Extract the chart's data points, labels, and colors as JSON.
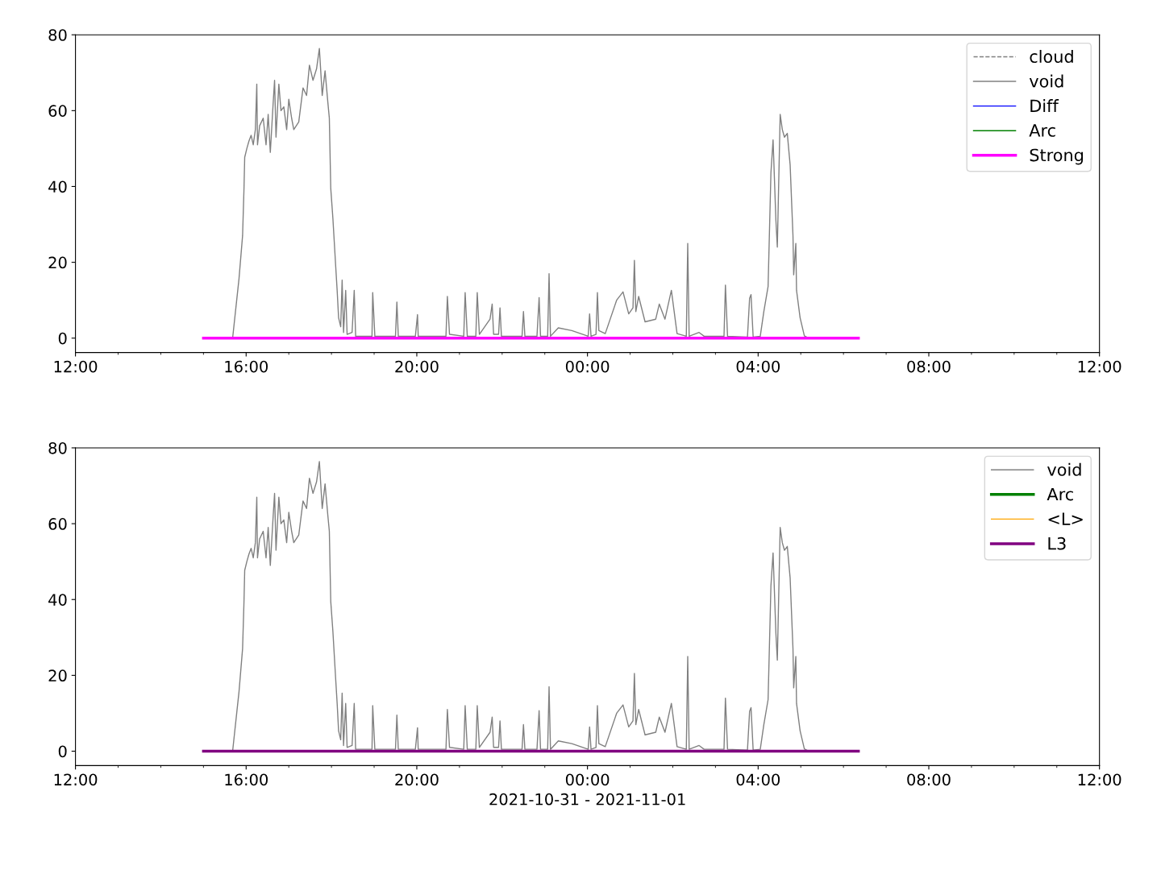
{
  "chart_data": [
    {
      "type": "line",
      "xlim": [
        "2021-10-31T12:00",
        "2021-11-01T12:00"
      ],
      "ylim": [
        -3.8,
        80
      ],
      "xticks": [
        {
          "value": "2021-10-31T12:00",
          "label": "12:00"
        },
        {
          "value": "2021-10-31T13:00",
          "label": null
        },
        {
          "value": "2021-10-31T14:00",
          "label": null
        },
        {
          "value": "2021-10-31T15:00",
          "label": null
        },
        {
          "value": "2021-10-31T16:00",
          "label": "16:00"
        },
        {
          "value": "2021-10-31T17:00",
          "label": null
        },
        {
          "value": "2021-10-31T18:00",
          "label": null
        },
        {
          "value": "2021-10-31T19:00",
          "label": null
        },
        {
          "value": "2021-10-31T20:00",
          "label": "20:00"
        },
        {
          "value": "2021-10-31T21:00",
          "label": null
        },
        {
          "value": "2021-10-31T22:00",
          "label": null
        },
        {
          "value": "2021-10-31T23:00",
          "label": null
        },
        {
          "value": "2021-11-01T00:00",
          "label": "00:00"
        },
        {
          "value": "2021-11-01T01:00",
          "label": null
        },
        {
          "value": "2021-11-01T02:00",
          "label": null
        },
        {
          "value": "2021-11-01T03:00",
          "label": null
        },
        {
          "value": "2021-11-01T04:00",
          "label": "04:00"
        },
        {
          "value": "2021-11-01T05:00",
          "label": null
        },
        {
          "value": "2021-11-01T06:00",
          "label": null
        },
        {
          "value": "2021-11-01T07:00",
          "label": null
        },
        {
          "value": "2021-11-01T08:00",
          "label": "08:00"
        },
        {
          "value": "2021-11-01T09:00",
          "label": null
        },
        {
          "value": "2021-11-01T10:00",
          "label": null
        },
        {
          "value": "2021-11-01T11:00",
          "label": null
        },
        {
          "value": "2021-11-01T12:00",
          "label": "12:00"
        }
      ],
      "yticks": [
        0,
        20,
        40,
        60,
        80
      ],
      "legend": "top right",
      "series": [
        {
          "name": "cloud",
          "color": "#808080",
          "line_style": "dashed"
        },
        {
          "name": "void",
          "color": "#808080",
          "x": [
            "2021-10-31T15:00",
            "2021-10-31T15:41",
            "2021-10-31T15:47",
            "2021-10-31T15:50",
            "2021-10-31T15:55",
            "2021-10-31T15:57",
            "2021-10-31T15:58",
            "2021-10-31T16:01",
            "2021-10-31T16:04",
            "2021-10-31T16:07",
            "2021-10-31T16:10",
            "2021-10-31T16:13",
            "2021-10-31T16:15",
            "2021-10-31T16:16",
            "2021-10-31T16:19",
            "2021-10-31T16:24",
            "2021-10-31T16:28",
            "2021-10-31T16:31",
            "2021-10-31T16:34",
            "2021-10-31T16:38",
            "2021-10-31T16:40",
            "2021-10-31T16:42",
            "2021-10-31T16:46",
            "2021-10-31T16:49",
            "2021-10-31T16:53",
            "2021-10-31T16:57",
            "2021-10-31T17:00",
            "2021-10-31T17:04",
            "2021-10-31T17:07",
            "2021-10-31T17:14",
            "2021-10-31T17:20",
            "2021-10-31T17:25",
            "2021-10-31T17:29",
            "2021-10-31T17:34",
            "2021-10-31T17:39",
            "2021-10-31T17:43",
            "2021-10-31T17:47",
            "2021-10-31T17:51",
            "2021-10-31T17:55",
            "2021-10-31T17:57",
            "2021-10-31T17:59",
            "2021-10-31T18:02",
            "2021-10-31T18:06",
            "2021-10-31T18:08",
            "2021-10-31T18:10",
            "2021-10-31T18:13",
            "2021-10-31T18:15",
            "2021-10-31T18:17",
            "2021-10-31T18:20",
            "2021-10-31T18:22",
            "2021-10-31T18:29",
            "2021-10-31T18:32",
            "2021-10-31T18:34",
            "2021-10-31T18:50",
            "2021-10-31T18:57",
            "2021-10-31T18:58",
            "2021-10-31T19:01",
            "2021-10-31T19:30",
            "2021-10-31T19:32",
            "2021-10-31T19:34",
            "2021-10-31T19:58",
            "2021-10-31T20:01",
            "2021-10-31T20:02",
            "2021-10-31T20:41",
            "2021-10-31T20:43",
            "2021-10-31T20:46",
            "2021-10-31T21:06",
            "2021-10-31T21:08",
            "2021-10-31T21:11",
            "2021-10-31T21:23",
            "2021-10-31T21:25",
            "2021-10-31T21:28",
            "2021-10-31T21:43",
            "2021-10-31T21:46",
            "2021-10-31T21:48",
            "2021-10-31T21:55",
            "2021-10-31T21:57",
            "2021-10-31T21:59",
            "2021-10-31T22:28",
            "2021-10-31T22:30",
            "2021-10-31T22:32",
            "2021-10-31T22:49",
            "2021-10-31T22:52",
            "2021-10-31T22:54",
            "2021-10-31T23:04",
            "2021-10-31T23:06",
            "2021-10-31T23:08",
            "2021-10-31T23:19",
            "2021-10-31T23:38",
            "2021-11-01T00:01",
            "2021-11-01T00:03",
            "2021-11-01T00:05",
            "2021-11-01T00:12",
            "2021-11-01T00:14",
            "2021-11-01T00:16",
            "2021-11-01T00:25",
            "2021-11-01T00:41",
            "2021-11-01T00:50",
            "2021-11-01T00:58",
            "2021-11-01T01:04",
            "2021-11-01T01:06",
            "2021-11-01T01:08",
            "2021-11-01T01:12",
            "2021-11-01T01:21",
            "2021-11-01T01:36",
            "2021-11-01T01:41",
            "2021-11-01T01:49",
            "2021-11-01T01:58",
            "2021-11-01T02:06",
            "2021-11-01T02:19",
            "2021-11-01T02:21",
            "2021-11-01T02:23",
            "2021-11-01T02:37",
            "2021-11-01T02:44",
            "2021-11-01T03:12",
            "2021-11-01T03:14",
            "2021-11-01T03:17",
            "2021-11-01T03:45",
            "2021-11-01T03:48",
            "2021-11-01T03:50",
            "2021-11-01T03:53",
            "2021-11-01T04:03",
            "2021-11-01T04:08",
            "2021-11-01T04:14",
            "2021-11-01T04:18",
            "2021-11-01T04:21",
            "2021-11-01T04:25",
            "2021-11-01T04:27",
            "2021-11-01T04:31",
            "2021-11-01T04:34",
            "2021-11-01T04:37",
            "2021-11-01T04:41",
            "2021-11-01T04:45",
            "2021-11-01T04:49",
            "2021-11-01T04:50",
            "2021-11-01T04:53",
            "2021-11-01T04:54",
            "2021-11-01T04:59",
            "2021-11-01T05:05",
            "2021-11-01T05:11"
          ],
          "values": [
            0,
            0,
            10.5,
            15.7,
            27,
            39.5,
            47.7,
            50,
            52,
            53.5,
            51,
            55,
            67,
            51,
            56,
            58,
            51,
            59,
            49,
            62,
            68,
            53,
            67,
            60,
            61,
            55,
            63,
            58,
            55,
            57,
            66,
            64,
            72,
            68,
            71,
            76.4,
            64,
            70.5,
            62,
            58,
            39.5,
            31.6,
            18.8,
            12.6,
            5.4,
            3,
            15.3,
            1.5,
            12.6,
            1,
            1.5,
            12.6,
            0.5,
            0.5,
            0.5,
            12,
            0.5,
            0.5,
            9.5,
            0.5,
            0.5,
            6.2,
            0.5,
            0.5,
            11,
            1,
            0.5,
            12,
            0.5,
            0.5,
            12,
            1,
            5,
            9,
            1,
            1,
            8,
            0.5,
            0.5,
            7,
            0.5,
            0.5,
            10.7,
            0.5,
            0.5,
            17,
            0.5,
            2.7,
            2,
            0.5,
            6.4,
            0.5,
            1,
            12,
            2,
            1.2,
            10,
            12.2,
            6.4,
            8,
            20.5,
            7,
            11,
            4.3,
            5,
            9,
            5,
            12.6,
            1.2,
            0.5,
            25,
            0.5,
            1.5,
            0.5,
            0.5,
            14,
            0.5,
            0.3,
            10.5,
            11.5,
            0.3,
            0.5,
            7,
            13.6,
            43.6,
            52.3,
            31,
            24,
            59,
            55,
            53,
            54,
            45.7,
            27,
            16.7,
            25,
            12.6,
            5.4,
            0.6,
            0
          ]
        },
        {
          "name": "Diff",
          "color": "#0000ff"
        },
        {
          "name": "Arc",
          "color": "#008000"
        },
        {
          "name": "Strong",
          "color": "#ff00ff",
          "x": [
            "2021-10-31T15:00",
            "2021-11-01T06:21"
          ],
          "values": [
            0,
            0
          ]
        }
      ]
    },
    {
      "type": "line",
      "xlim": [
        "2021-10-31T12:00",
        "2021-11-01T12:00"
      ],
      "ylim": [
        -3.8,
        80
      ],
      "xlabel": "2021-10-31 - 2021-11-01",
      "xticks": [
        {
          "value": "2021-10-31T12:00",
          "label": "12:00"
        },
        {
          "value": "2021-10-31T13:00",
          "label": null
        },
        {
          "value": "2021-10-31T14:00",
          "label": null
        },
        {
          "value": "2021-10-31T15:00",
          "label": null
        },
        {
          "value": "2021-10-31T16:00",
          "label": "16:00"
        },
        {
          "value": "2021-10-31T17:00",
          "label": null
        },
        {
          "value": "2021-10-31T18:00",
          "label": null
        },
        {
          "value": "2021-10-31T19:00",
          "label": null
        },
        {
          "value": "2021-10-31T20:00",
          "label": "20:00"
        },
        {
          "value": "2021-10-31T21:00",
          "label": null
        },
        {
          "value": "2021-10-31T22:00",
          "label": null
        },
        {
          "value": "2021-10-31T23:00",
          "label": null
        },
        {
          "value": "2021-11-01T00:00",
          "label": "00:00"
        },
        {
          "value": "2021-11-01T01:00",
          "label": null
        },
        {
          "value": "2021-11-01T02:00",
          "label": null
        },
        {
          "value": "2021-11-01T03:00",
          "label": null
        },
        {
          "value": "2021-11-01T04:00",
          "label": "04:00"
        },
        {
          "value": "2021-11-01T05:00",
          "label": null
        },
        {
          "value": "2021-11-01T06:00",
          "label": null
        },
        {
          "value": "2021-11-01T07:00",
          "label": null
        },
        {
          "value": "2021-11-01T08:00",
          "label": "08:00"
        },
        {
          "value": "2021-11-01T09:00",
          "label": null
        },
        {
          "value": "2021-11-01T10:00",
          "label": null
        },
        {
          "value": "2021-11-01T11:00",
          "label": null
        },
        {
          "value": "2021-11-01T12:00",
          "label": "12:00"
        }
      ],
      "yticks": [
        0,
        20,
        40,
        60,
        80
      ],
      "legend": "top right",
      "series": [
        {
          "name": "void",
          "color": "#808080",
          "x": [
            "2021-10-31T15:00",
            "2021-10-31T15:41",
            "2021-10-31T15:47",
            "2021-10-31T15:50",
            "2021-10-31T15:55",
            "2021-10-31T15:57",
            "2021-10-31T15:58",
            "2021-10-31T16:01",
            "2021-10-31T16:04",
            "2021-10-31T16:07",
            "2021-10-31T16:10",
            "2021-10-31T16:13",
            "2021-10-31T16:15",
            "2021-10-31T16:16",
            "2021-10-31T16:19",
            "2021-10-31T16:24",
            "2021-10-31T16:28",
            "2021-10-31T16:31",
            "2021-10-31T16:34",
            "2021-10-31T16:38",
            "2021-10-31T16:40",
            "2021-10-31T16:42",
            "2021-10-31T16:46",
            "2021-10-31T16:49",
            "2021-10-31T16:53",
            "2021-10-31T16:57",
            "2021-10-31T17:00",
            "2021-10-31T17:04",
            "2021-10-31T17:07",
            "2021-10-31T17:14",
            "2021-10-31T17:20",
            "2021-10-31T17:25",
            "2021-10-31T17:29",
            "2021-10-31T17:34",
            "2021-10-31T17:39",
            "2021-10-31T17:43",
            "2021-10-31T17:47",
            "2021-10-31T17:51",
            "2021-10-31T17:55",
            "2021-10-31T17:57",
            "2021-10-31T17:59",
            "2021-10-31T18:02",
            "2021-10-31T18:06",
            "2021-10-31T18:08",
            "2021-10-31T18:10",
            "2021-10-31T18:13",
            "2021-10-31T18:15",
            "2021-10-31T18:17",
            "2021-10-31T18:20",
            "2021-10-31T18:22",
            "2021-10-31T18:29",
            "2021-10-31T18:32",
            "2021-10-31T18:34",
            "2021-10-31T18:50",
            "2021-10-31T18:57",
            "2021-10-31T18:58",
            "2021-10-31T19:01",
            "2021-10-31T19:30",
            "2021-10-31T19:32",
            "2021-10-31T19:34",
            "2021-10-31T19:58",
            "2021-10-31T20:01",
            "2021-10-31T20:02",
            "2021-10-31T20:41",
            "2021-10-31T20:43",
            "2021-10-31T20:46",
            "2021-10-31T21:06",
            "2021-10-31T21:08",
            "2021-10-31T21:11",
            "2021-10-31T21:23",
            "2021-10-31T21:25",
            "2021-10-31T21:28",
            "2021-10-31T21:43",
            "2021-10-31T21:46",
            "2021-10-31T21:48",
            "2021-10-31T21:55",
            "2021-10-31T21:57",
            "2021-10-31T21:59",
            "2021-10-31T22:28",
            "2021-10-31T22:30",
            "2021-10-31T22:32",
            "2021-10-31T22:49",
            "2021-10-31T22:52",
            "2021-10-31T22:54",
            "2021-10-31T23:04",
            "2021-10-31T23:06",
            "2021-10-31T23:08",
            "2021-10-31T23:19",
            "2021-10-31T23:38",
            "2021-11-01T00:01",
            "2021-11-01T00:03",
            "2021-11-01T00:05",
            "2021-11-01T00:12",
            "2021-11-01T00:14",
            "2021-11-01T00:16",
            "2021-11-01T00:25",
            "2021-11-01T00:41",
            "2021-11-01T00:50",
            "2021-11-01T00:58",
            "2021-11-01T01:04",
            "2021-11-01T01:06",
            "2021-11-01T01:08",
            "2021-11-01T01:12",
            "2021-11-01T01:21",
            "2021-11-01T01:36",
            "2021-11-01T01:41",
            "2021-11-01T01:49",
            "2021-11-01T01:58",
            "2021-11-01T02:06",
            "2021-11-01T02:19",
            "2021-11-01T02:21",
            "2021-11-01T02:23",
            "2021-11-01T02:37",
            "2021-11-01T02:44",
            "2021-11-01T03:12",
            "2021-11-01T03:14",
            "2021-11-01T03:17",
            "2021-11-01T03:45",
            "2021-11-01T03:48",
            "2021-11-01T03:50",
            "2021-11-01T03:53",
            "2021-11-01T04:03",
            "2021-11-01T04:08",
            "2021-11-01T04:14",
            "2021-11-01T04:18",
            "2021-11-01T04:21",
            "2021-11-01T04:25",
            "2021-11-01T04:27",
            "2021-11-01T04:31",
            "2021-11-01T04:34",
            "2021-11-01T04:37",
            "2021-11-01T04:41",
            "2021-11-01T04:45",
            "2021-11-01T04:49",
            "2021-11-01T04:50",
            "2021-11-01T04:53",
            "2021-11-01T04:54",
            "2021-11-01T04:59",
            "2021-11-01T05:05",
            "2021-11-01T05:11"
          ],
          "values": [
            0,
            0,
            10.5,
            15.7,
            27,
            39.5,
            47.7,
            50,
            52,
            53.5,
            51,
            55,
            67,
            51,
            56,
            58,
            51,
            59,
            49,
            62,
            68,
            53,
            67,
            60,
            61,
            55,
            63,
            58,
            55,
            57,
            66,
            64,
            72,
            68,
            71,
            76.4,
            64,
            70.5,
            62,
            58,
            39.5,
            31.6,
            18.8,
            12.6,
            5.4,
            3,
            15.3,
            1.5,
            12.6,
            1,
            1.5,
            12.6,
            0.5,
            0.5,
            0.5,
            12,
            0.5,
            0.5,
            9.5,
            0.5,
            0.5,
            6.2,
            0.5,
            0.5,
            11,
            1,
            0.5,
            12,
            0.5,
            0.5,
            12,
            1,
            5,
            9,
            1,
            1,
            8,
            0.5,
            0.5,
            7,
            0.5,
            0.5,
            10.7,
            0.5,
            0.5,
            17,
            0.5,
            2.7,
            2,
            0.5,
            6.4,
            0.5,
            1,
            12,
            2,
            1.2,
            10,
            12.2,
            6.4,
            8,
            20.5,
            7,
            11,
            4.3,
            5,
            9,
            5,
            12.6,
            1.2,
            0.5,
            25,
            0.5,
            1.5,
            0.5,
            0.5,
            14,
            0.5,
            0.3,
            10.5,
            11.5,
            0.3,
            0.5,
            7,
            13.6,
            43.6,
            52.3,
            31,
            24,
            59,
            55,
            53,
            54,
            45.7,
            27,
            16.7,
            25,
            12.6,
            5.4,
            0.6,
            0
          ]
        },
        {
          "name": "Arc",
          "color": "#008000"
        },
        {
          "name": "<L>",
          "color": "#ffa500"
        },
        {
          "name": "L3",
          "color": "#800080",
          "x": [
            "2021-10-31T15:00",
            "2021-11-01T06:21"
          ],
          "values": [
            0,
            0
          ]
        }
      ]
    }
  ]
}
